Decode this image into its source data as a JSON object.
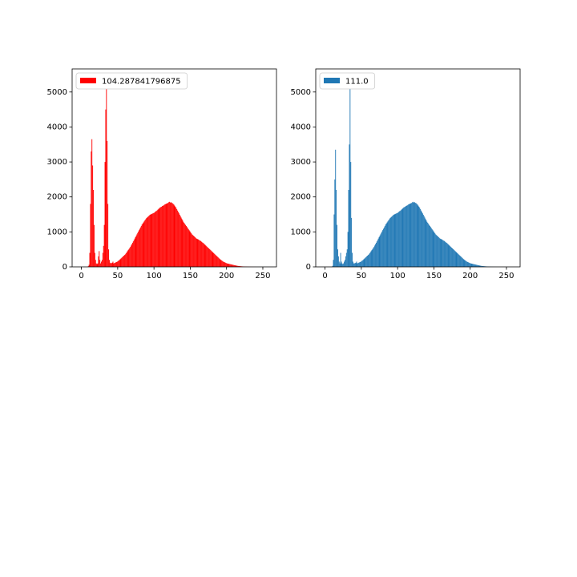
{
  "chart_data": [
    {
      "type": "histogram",
      "legend": "upper left",
      "xlim": [
        -12.8,
        268.8
      ],
      "ylim": [
        0,
        5660
      ],
      "xticks": [
        0,
        50,
        100,
        150,
        200,
        250
      ],
      "yticks": [
        0,
        1000,
        2000,
        3000,
        4000,
        5000
      ],
      "bins": [
        0,
        1,
        2,
        3,
        4,
        5,
        6,
        7,
        8,
        9,
        10,
        11,
        12,
        13,
        14,
        15,
        16,
        17,
        18,
        19,
        20,
        21,
        22,
        23,
        24,
        25,
        26,
        27,
        28,
        29,
        30,
        31,
        32,
        33,
        34,
        35,
        36,
        37,
        38,
        39,
        40,
        41,
        42,
        43,
        44,
        45,
        46,
        47,
        48,
        49,
        50,
        51,
        52,
        53,
        54,
        55,
        56,
        57,
        58,
        59,
        60,
        61,
        62,
        63,
        64,
        65,
        66,
        67,
        68,
        69,
        70,
        71,
        72,
        73,
        74,
        75,
        76,
        77,
        78,
        79,
        80,
        81,
        82,
        83,
        84,
        85,
        86,
        87,
        88,
        89,
        90,
        91,
        92,
        93,
        94,
        95,
        96,
        97,
        98,
        99,
        100,
        101,
        102,
        103,
        104,
        105,
        106,
        107,
        108,
        109,
        110,
        111,
        112,
        113,
        114,
        115,
        116,
        117,
        118,
        119,
        120,
        121,
        122,
        123,
        124,
        125,
        126,
        127,
        128,
        129,
        130,
        131,
        132,
        133,
        134,
        135,
        136,
        137,
        138,
        139,
        140,
        141,
        142,
        143,
        144,
        145,
        146,
        147,
        148,
        149,
        150,
        151,
        152,
        153,
        154,
        155,
        156,
        157,
        158,
        159,
        160,
        161,
        162,
        163,
        164,
        165,
        166,
        167,
        168,
        169,
        170,
        171,
        172,
        173,
        174,
        175,
        176,
        177,
        178,
        179,
        180,
        181,
        182,
        183,
        184,
        185,
        186,
        187,
        188,
        189,
        190,
        191,
        192,
        193,
        194,
        195,
        196,
        197,
        198,
        199,
        200,
        201,
        202,
        203,
        204,
        205,
        206,
        207,
        208,
        209,
        210,
        211,
        212,
        213,
        214,
        215,
        216,
        217,
        218,
        219,
        220,
        221,
        222,
        223,
        224,
        225,
        226,
        227,
        228,
        229,
        230,
        231,
        232,
        233,
        234,
        235,
        236,
        237,
        238,
        239,
        240,
        241,
        242,
        243,
        244,
        245,
        246,
        247,
        248,
        249,
        250,
        251,
        252,
        253,
        254,
        255,
        256
      ],
      "series": [
        {
          "name": "104.287841796875",
          "color": "#ff0000",
          "values": [
            0,
            0,
            0,
            0,
            0,
            0,
            0,
            0,
            0,
            20,
            60,
            400,
            1800,
            3300,
            3650,
            2900,
            2200,
            1200,
            400,
            200,
            100,
            80,
            100,
            300,
            450,
            200,
            100,
            150,
            200,
            400,
            600,
            1200,
            3000,
            4500,
            5150,
            3600,
            1800,
            500,
            200,
            120,
            100,
            110,
            120,
            150,
            100,
            110,
            120,
            130,
            140,
            150,
            170,
            180,
            200,
            220,
            240,
            260,
            280,
            300,
            320,
            340,
            360,
            390,
            420,
            450,
            480,
            510,
            540,
            570,
            610,
            650,
            690,
            730,
            770,
            810,
            850,
            890,
            930,
            970,
            1010,
            1050,
            1090,
            1130,
            1170,
            1210,
            1240,
            1270,
            1300,
            1330,
            1360,
            1390,
            1410,
            1430,
            1450,
            1470,
            1490,
            1500,
            1510,
            1520,
            1530,
            1540,
            1550,
            1570,
            1590,
            1600,
            1620,
            1640,
            1660,
            1680,
            1700,
            1710,
            1720,
            1740,
            1750,
            1760,
            1780,
            1790,
            1800,
            1810,
            1820,
            1830,
            1850,
            1860,
            1840,
            1850,
            1830,
            1820,
            1800,
            1780,
            1750,
            1720,
            1690,
            1650,
            1610,
            1570,
            1530,
            1490,
            1450,
            1410,
            1370,
            1330,
            1290,
            1260,
            1230,
            1200,
            1170,
            1140,
            1110,
            1080,
            1050,
            1020,
            990,
            960,
            930,
            910,
            890,
            870,
            850,
            830,
            810,
            800,
            790,
            780,
            760,
            750,
            740,
            720,
            700,
            690,
            670,
            650,
            630,
            610,
            590,
            570,
            550,
            530,
            510,
            490,
            470,
            450,
            430,
            410,
            390,
            370,
            350,
            330,
            310,
            290,
            270,
            250,
            230,
            210,
            195,
            180,
            165,
            150,
            140,
            130,
            120,
            110,
            100,
            95,
            90,
            85,
            80,
            75,
            70,
            65,
            60,
            55,
            50,
            45,
            40,
            36,
            32,
            28,
            25,
            22,
            20,
            18,
            16,
            14,
            12,
            10,
            9,
            8,
            7,
            6,
            5,
            4,
            4,
            3,
            3,
            2,
            2,
            2,
            1,
            1,
            1,
            1,
            1,
            0,
            0,
            0,
            0,
            0,
            0,
            0,
            0,
            0,
            0,
            0,
            0,
            0,
            0,
            0
          ]
        }
      ]
    },
    {
      "type": "histogram",
      "legend": "upper left",
      "xlim": [
        -12.8,
        268.8
      ],
      "ylim": [
        0,
        5660
      ],
      "xticks": [
        0,
        50,
        100,
        150,
        200,
        250
      ],
      "yticks": [
        0,
        1000,
        2000,
        3000,
        4000,
        5000
      ],
      "bins": [
        0,
        1,
        2,
        3,
        4,
        5,
        6,
        7,
        8,
        9,
        10,
        11,
        12,
        13,
        14,
        15,
        16,
        17,
        18,
        19,
        20,
        21,
        22,
        23,
        24,
        25,
        26,
        27,
        28,
        29,
        30,
        31,
        32,
        33,
        34,
        35,
        36,
        37,
        38,
        39,
        40,
        41,
        42,
        43,
        44,
        45,
        46,
        47,
        48,
        49,
        50,
        51,
        52,
        53,
        54,
        55,
        56,
        57,
        58,
        59,
        60,
        61,
        62,
        63,
        64,
        65,
        66,
        67,
        68,
        69,
        70,
        71,
        72,
        73,
        74,
        75,
        76,
        77,
        78,
        79,
        80,
        81,
        82,
        83,
        84,
        85,
        86,
        87,
        88,
        89,
        90,
        91,
        92,
        93,
        94,
        95,
        96,
        97,
        98,
        99,
        100,
        101,
        102,
        103,
        104,
        105,
        106,
        107,
        108,
        109,
        110,
        111,
        112,
        113,
        114,
        115,
        116,
        117,
        118,
        119,
        120,
        121,
        122,
        123,
        124,
        125,
        126,
        127,
        128,
        129,
        130,
        131,
        132,
        133,
        134,
        135,
        136,
        137,
        138,
        139,
        140,
        141,
        142,
        143,
        144,
        145,
        146,
        147,
        148,
        149,
        150,
        151,
        152,
        153,
        154,
        155,
        156,
        157,
        158,
        159,
        160,
        161,
        162,
        163,
        164,
        165,
        166,
        167,
        168,
        169,
        170,
        171,
        172,
        173,
        174,
        175,
        176,
        177,
        178,
        179,
        180,
        181,
        182,
        183,
        184,
        185,
        186,
        187,
        188,
        189,
        190,
        191,
        192,
        193,
        194,
        195,
        196,
        197,
        198,
        199,
        200,
        201,
        202,
        203,
        204,
        205,
        206,
        207,
        208,
        209,
        210,
        211,
        212,
        213,
        214,
        215,
        216,
        217,
        218,
        219,
        220,
        221,
        222,
        223,
        224,
        225,
        226,
        227,
        228,
        229,
        230,
        231,
        232,
        233,
        234,
        235,
        236,
        237,
        238,
        239,
        240,
        241,
        242,
        243,
        244,
        245,
        246,
        247,
        248,
        249,
        250,
        251,
        252,
        253,
        254,
        255,
        256
      ],
      "series": [
        {
          "name": "111.0",
          "color": "#1f77b4",
          "values": [
            0,
            0,
            0,
            0,
            0,
            0,
            0,
            0,
            0,
            0,
            30,
            200,
            1500,
            2500,
            3350,
            2200,
            1200,
            500,
            300,
            150,
            100,
            400,
            150,
            100,
            80,
            100,
            150,
            200,
            300,
            400,
            500,
            1000,
            2200,
            3500,
            5150,
            3000,
            1400,
            400,
            150,
            100,
            100,
            110,
            120,
            150,
            100,
            110,
            120,
            130,
            140,
            150,
            170,
            180,
            200,
            220,
            240,
            260,
            280,
            300,
            320,
            340,
            360,
            390,
            420,
            450,
            480,
            510,
            540,
            570,
            610,
            650,
            690,
            730,
            770,
            810,
            850,
            890,
            930,
            970,
            1010,
            1050,
            1090,
            1130,
            1170,
            1210,
            1240,
            1270,
            1300,
            1330,
            1360,
            1390,
            1410,
            1430,
            1450,
            1470,
            1490,
            1500,
            1510,
            1520,
            1530,
            1540,
            1550,
            1570,
            1590,
            1600,
            1620,
            1640,
            1660,
            1680,
            1700,
            1710,
            1720,
            1740,
            1750,
            1760,
            1780,
            1790,
            1800,
            1810,
            1820,
            1830,
            1850,
            1860,
            1840,
            1850,
            1830,
            1820,
            1800,
            1780,
            1750,
            1720,
            1690,
            1650,
            1610,
            1570,
            1530,
            1490,
            1450,
            1410,
            1370,
            1330,
            1290,
            1260,
            1230,
            1200,
            1170,
            1140,
            1110,
            1080,
            1050,
            1020,
            990,
            960,
            930,
            910,
            890,
            870,
            850,
            830,
            810,
            800,
            790,
            780,
            760,
            750,
            740,
            720,
            700,
            690,
            670,
            650,
            630,
            610,
            590,
            570,
            550,
            530,
            510,
            490,
            470,
            450,
            430,
            410,
            390,
            370,
            350,
            330,
            310,
            290,
            270,
            250,
            230,
            210,
            195,
            180,
            165,
            150,
            140,
            130,
            120,
            110,
            100,
            95,
            90,
            85,
            80,
            75,
            70,
            65,
            60,
            55,
            50,
            45,
            40,
            36,
            32,
            28,
            25,
            22,
            20,
            18,
            16,
            14,
            12,
            10,
            9,
            8,
            7,
            6,
            5,
            4,
            4,
            3,
            3,
            2,
            2,
            2,
            1,
            1,
            1,
            1,
            1,
            0,
            0,
            0,
            0,
            0,
            0,
            0,
            0,
            0,
            0,
            0,
            0,
            0,
            0,
            0
          ]
        }
      ]
    }
  ]
}
